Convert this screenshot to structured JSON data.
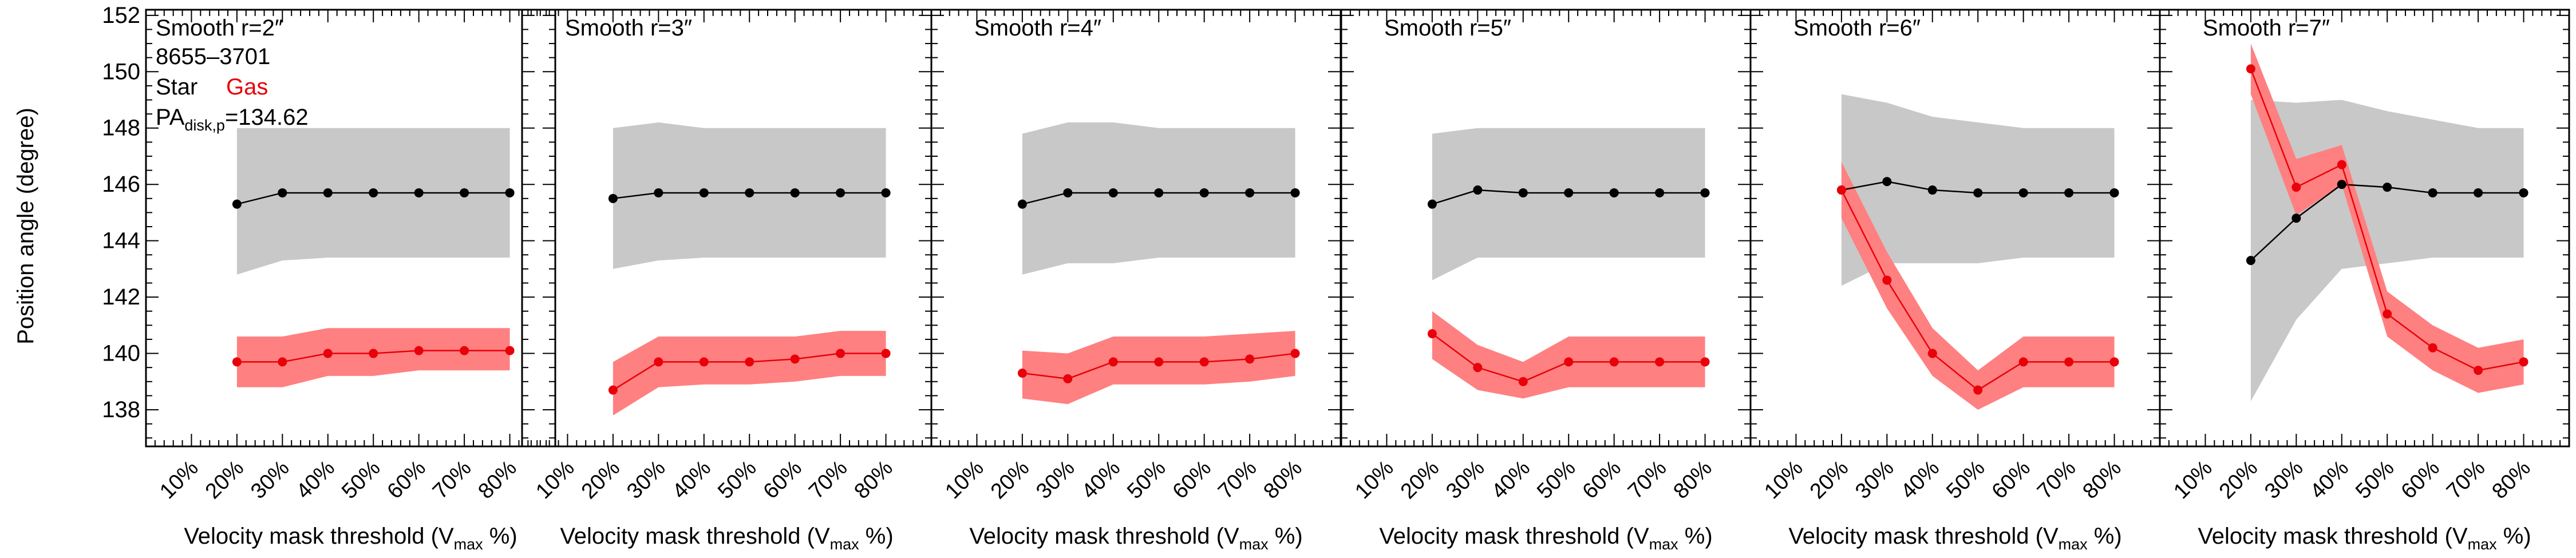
{
  "figure": {
    "ylabel": "Position angle (degree)",
    "ylim": [
      136.7,
      152.2
    ],
    "xlim": [
      0,
      90
    ],
    "xtick_labels": [
      "10%",
      "20%",
      "30%",
      "40%",
      "50%",
      "60%",
      "70%",
      "80%"
    ],
    "colors": {
      "star": "#000000",
      "star_band": "#c8c8c8",
      "gas": "#e8000a",
      "gas_band": "#ff8080"
    },
    "annotations": {
      "galaxy_id": "8655–3701",
      "legend_star": "Star",
      "legend_gas": "Gas",
      "pa_main": "PA",
      "pa_sub": "disk,p",
      "pa_value": "=134.62"
    }
  },
  "chart_data": [
    {
      "type": "line",
      "title": "Smooth r=2″",
      "xlabel_main": "Velocity mask threshold (V",
      "xlabel_sub": "max",
      "xlabel_end": " %)",
      "x": [
        20,
        30,
        40,
        50,
        60,
        70,
        80
      ],
      "series": [
        {
          "name": "Star",
          "values": [
            145.3,
            145.7,
            145.7,
            145.7,
            145.7,
            145.7,
            145.7
          ],
          "band_upper": [
            148.0,
            148.0,
            148.0,
            148.0,
            148.0,
            148.0,
            148.0
          ],
          "band_lower": [
            142.8,
            143.3,
            143.4,
            143.4,
            143.4,
            143.4,
            143.4
          ]
        },
        {
          "name": "Gas",
          "values": [
            139.7,
            139.7,
            140.0,
            140.0,
            140.1,
            140.1,
            140.1
          ],
          "band_upper": [
            140.6,
            140.6,
            140.9,
            140.9,
            140.9,
            140.9,
            140.9
          ],
          "band_lower": [
            138.8,
            138.8,
            139.2,
            139.2,
            139.4,
            139.4,
            139.4
          ]
        }
      ]
    },
    {
      "type": "line",
      "title": "Smooth r=3″",
      "xlabel_main": "Velocity mask threshold (V",
      "xlabel_sub": "max",
      "xlabel_end": " %)",
      "x": [
        20,
        30,
        40,
        50,
        60,
        70,
        80
      ],
      "series": [
        {
          "name": "Star",
          "values": [
            145.5,
            145.7,
            145.7,
            145.7,
            145.7,
            145.7,
            145.7
          ],
          "band_upper": [
            148.0,
            148.2,
            148.0,
            148.0,
            148.0,
            148.0,
            148.0
          ],
          "band_lower": [
            143.0,
            143.3,
            143.4,
            143.4,
            143.4,
            143.4,
            143.4
          ]
        },
        {
          "name": "Gas",
          "values": [
            138.7,
            139.7,
            139.7,
            139.7,
            139.8,
            140.0,
            140.0
          ],
          "band_upper": [
            139.7,
            140.6,
            140.6,
            140.6,
            140.6,
            140.8,
            140.8
          ],
          "band_lower": [
            137.8,
            138.8,
            138.9,
            138.9,
            139.0,
            139.2,
            139.2
          ]
        }
      ]
    },
    {
      "type": "line",
      "title": "Smooth r=4″",
      "xlabel_main": "Velocity mask threshold (V",
      "xlabel_sub": "max",
      "xlabel_end": " %)",
      "x": [
        20,
        30,
        40,
        50,
        60,
        70,
        80
      ],
      "series": [
        {
          "name": "Star",
          "values": [
            145.3,
            145.7,
            145.7,
            145.7,
            145.7,
            145.7,
            145.7
          ],
          "band_upper": [
            147.8,
            148.2,
            148.2,
            148.0,
            148.0,
            148.0,
            148.0
          ],
          "band_lower": [
            142.8,
            143.2,
            143.2,
            143.4,
            143.4,
            143.4,
            143.4
          ]
        },
        {
          "name": "Gas",
          "values": [
            139.3,
            139.1,
            139.7,
            139.7,
            139.7,
            139.8,
            140.0
          ],
          "band_upper": [
            140.1,
            140.0,
            140.6,
            140.6,
            140.6,
            140.7,
            140.8
          ],
          "band_lower": [
            138.4,
            138.2,
            138.9,
            138.9,
            138.9,
            139.0,
            139.2
          ]
        }
      ]
    },
    {
      "type": "line",
      "title": "Smooth r=5″",
      "xlabel_main": "Velocity mask threshold (V",
      "xlabel_sub": "max",
      "xlabel_end": " %)",
      "x": [
        20,
        30,
        40,
        50,
        60,
        70,
        80
      ],
      "series": [
        {
          "name": "Star",
          "values": [
            145.3,
            145.8,
            145.7,
            145.7,
            145.7,
            145.7,
            145.7
          ],
          "band_upper": [
            147.8,
            148.0,
            148.0,
            148.0,
            148.0,
            148.0,
            148.0
          ],
          "band_lower": [
            142.6,
            143.4,
            143.4,
            143.4,
            143.4,
            143.4,
            143.4
          ]
        },
        {
          "name": "Gas",
          "values": [
            140.7,
            139.5,
            139.0,
            139.7,
            139.7,
            139.7,
            139.7
          ],
          "band_upper": [
            141.5,
            140.3,
            139.7,
            140.6,
            140.6,
            140.6,
            140.6
          ],
          "band_lower": [
            139.8,
            138.7,
            138.4,
            138.8,
            138.8,
            138.8,
            138.8
          ]
        }
      ]
    },
    {
      "type": "line",
      "title": "Smooth r=6″",
      "xlabel_main": "Velocity mask threshold (V",
      "xlabel_sub": "max",
      "xlabel_end": " %)",
      "x": [
        20,
        30,
        40,
        50,
        60,
        70,
        80
      ],
      "series": [
        {
          "name": "Star",
          "values": [
            145.8,
            146.1,
            145.8,
            145.7,
            145.7,
            145.7,
            145.7
          ],
          "band_upper": [
            149.2,
            148.9,
            148.4,
            148.2,
            148.0,
            148.0,
            148.0
          ],
          "band_lower": [
            142.4,
            143.2,
            143.2,
            143.2,
            143.4,
            143.4,
            143.4
          ]
        },
        {
          "name": "Gas",
          "values": [
            145.8,
            142.6,
            140.0,
            138.7,
            139.7,
            139.7,
            139.7
          ],
          "band_upper": [
            146.8,
            143.6,
            140.9,
            139.4,
            140.6,
            140.6,
            140.6
          ],
          "band_lower": [
            144.8,
            141.6,
            139.2,
            138.0,
            138.8,
            138.8,
            138.8
          ]
        }
      ]
    },
    {
      "type": "line",
      "title": "Smooth r=7″",
      "xlabel_main": "Velocity mask threshold (V",
      "xlabel_sub": "max",
      "xlabel_end": " %)",
      "x": [
        20,
        30,
        40,
        50,
        60,
        70,
        80
      ],
      "series": [
        {
          "name": "Star",
          "values": [
            143.3,
            144.8,
            146.0,
            145.9,
            145.7,
            145.7,
            145.7
          ],
          "band_upper": [
            149.0,
            148.9,
            149.0,
            148.6,
            148.3,
            148.0,
            148.0
          ],
          "band_lower": [
            138.3,
            141.2,
            143.0,
            143.2,
            143.4,
            143.4,
            143.4
          ]
        },
        {
          "name": "Gas",
          "values": [
            150.1,
            145.9,
            146.7,
            141.4,
            140.2,
            139.4,
            139.7
          ],
          "band_upper": [
            151.0,
            146.9,
            147.4,
            142.2,
            141.0,
            140.2,
            140.5
          ],
          "band_lower": [
            149.2,
            144.9,
            146.0,
            140.6,
            139.4,
            138.6,
            138.9
          ]
        }
      ]
    }
  ]
}
